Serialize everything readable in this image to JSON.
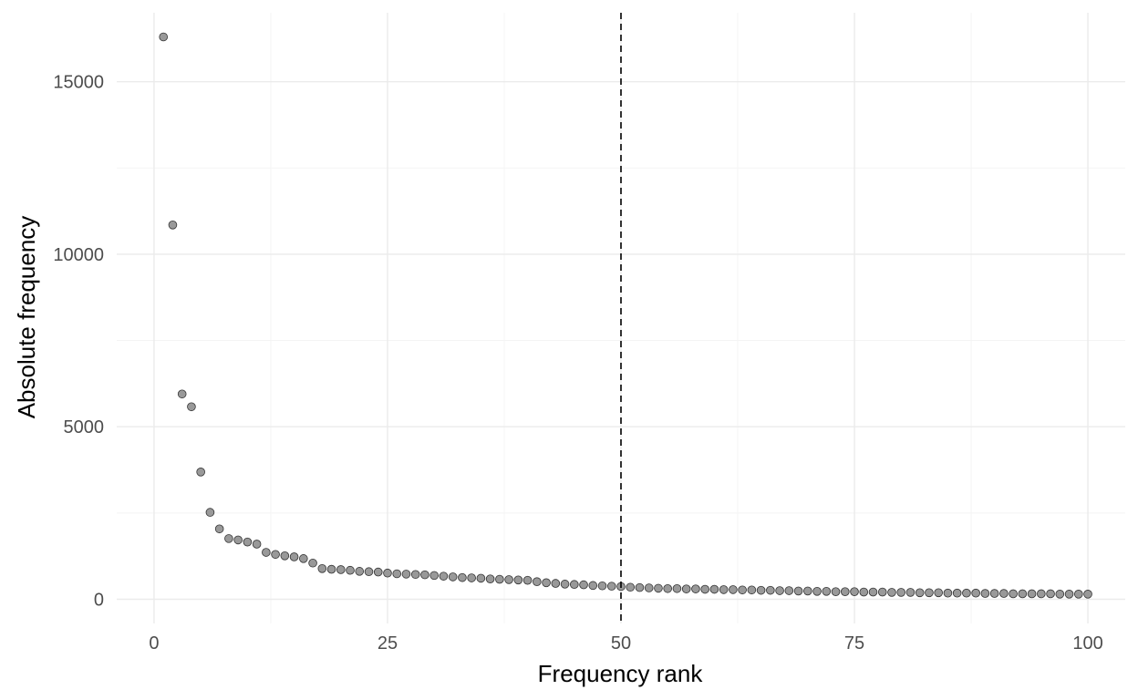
{
  "chart_data": {
    "type": "scatter",
    "title": "",
    "xlabel": "Frequency rank",
    "ylabel": "Absolute frequency",
    "xlim": [
      -4,
      104
    ],
    "ylim": [
      -700,
      17000
    ],
    "x_ticks": [
      0,
      25,
      50,
      75,
      100
    ],
    "y_ticks": [
      0,
      5000,
      10000,
      15000
    ],
    "x_minor_ticks": [
      12.5,
      37.5,
      62.5,
      87.5
    ],
    "y_minor_ticks": [
      2500,
      7500,
      12500
    ],
    "grid": true,
    "vline": {
      "x": 50,
      "style": "dashed",
      "color": "#000000"
    },
    "point_fill": "#999999",
    "point_stroke": "#333333",
    "x": [
      1,
      2,
      3,
      4,
      5,
      6,
      7,
      8,
      9,
      10,
      11,
      12,
      13,
      14,
      15,
      16,
      17,
      18,
      19,
      20,
      21,
      22,
      23,
      24,
      25,
      26,
      27,
      28,
      29,
      30,
      31,
      32,
      33,
      34,
      35,
      36,
      37,
      38,
      39,
      40,
      41,
      42,
      43,
      44,
      45,
      46,
      47,
      48,
      49,
      50,
      51,
      52,
      53,
      54,
      55,
      56,
      57,
      58,
      59,
      60,
      61,
      62,
      63,
      64,
      65,
      66,
      67,
      68,
      69,
      70,
      71,
      72,
      73,
      74,
      75,
      76,
      77,
      78,
      79,
      80,
      81,
      82,
      83,
      84,
      85,
      86,
      87,
      88,
      89,
      90,
      91,
      92,
      93,
      94,
      95,
      96,
      97,
      98,
      99,
      100
    ],
    "y": [
      16300,
      10850,
      5950,
      5580,
      3690,
      2520,
      2040,
      1760,
      1720,
      1660,
      1600,
      1360,
      1300,
      1260,
      1230,
      1180,
      1050,
      890,
      870,
      860,
      840,
      810,
      800,
      790,
      760,
      740,
      730,
      720,
      710,
      690,
      670,
      650,
      630,
      620,
      610,
      590,
      580,
      570,
      560,
      550,
      510,
      480,
      460,
      440,
      430,
      420,
      400,
      390,
      380,
      370,
      350,
      340,
      330,
      320,
      310,
      310,
      300,
      300,
      290,
      290,
      280,
      280,
      270,
      270,
      260,
      260,
      250,
      250,
      240,
      240,
      230,
      230,
      220,
      220,
      220,
      210,
      210,
      210,
      200,
      200,
      200,
      190,
      190,
      190,
      180,
      180,
      180,
      180,
      170,
      170,
      170,
      160,
      160,
      160,
      160,
      160,
      150,
      150,
      150,
      150
    ]
  }
}
